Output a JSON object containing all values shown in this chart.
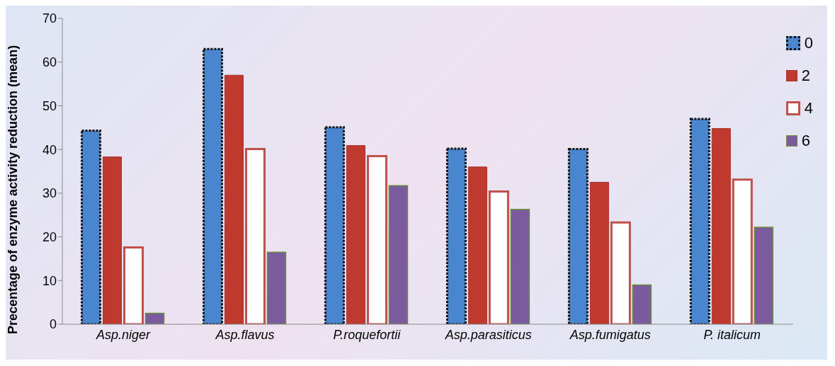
{
  "chart_data": {
    "type": "bar",
    "ylabel": "Precentage of enzyme activity reduction (mean)",
    "categories": [
      "Asp.niger",
      "Asp.flavus",
      "P.roquefortii",
      "Asp.parasiticus",
      "Asp.fumigatus",
      "P. italicum"
    ],
    "series": [
      {
        "name": "0",
        "color": "#4a86cf",
        "values": [
          44.3,
          63.0,
          45.1,
          40.2,
          40.1,
          47.0
        ]
      },
      {
        "name": "2",
        "color": "#c0392f",
        "values": [
          38.3,
          57.0,
          40.9,
          36.0,
          32.5,
          44.8
        ]
      },
      {
        "name": "4",
        "color": "#ffffff",
        "values": [
          17.6,
          40.1,
          38.5,
          30.4,
          23.3,
          33.1
        ]
      },
      {
        "name": "6",
        "color": "#7b5a9e",
        "values": [
          2.5,
          16.5,
          31.7,
          26.3,
          9.0,
          22.2
        ]
      }
    ],
    "ylim": [
      0,
      70
    ],
    "yticks": [
      0,
      10,
      20,
      30,
      40,
      50,
      60,
      70
    ],
    "legend": "top right"
  }
}
